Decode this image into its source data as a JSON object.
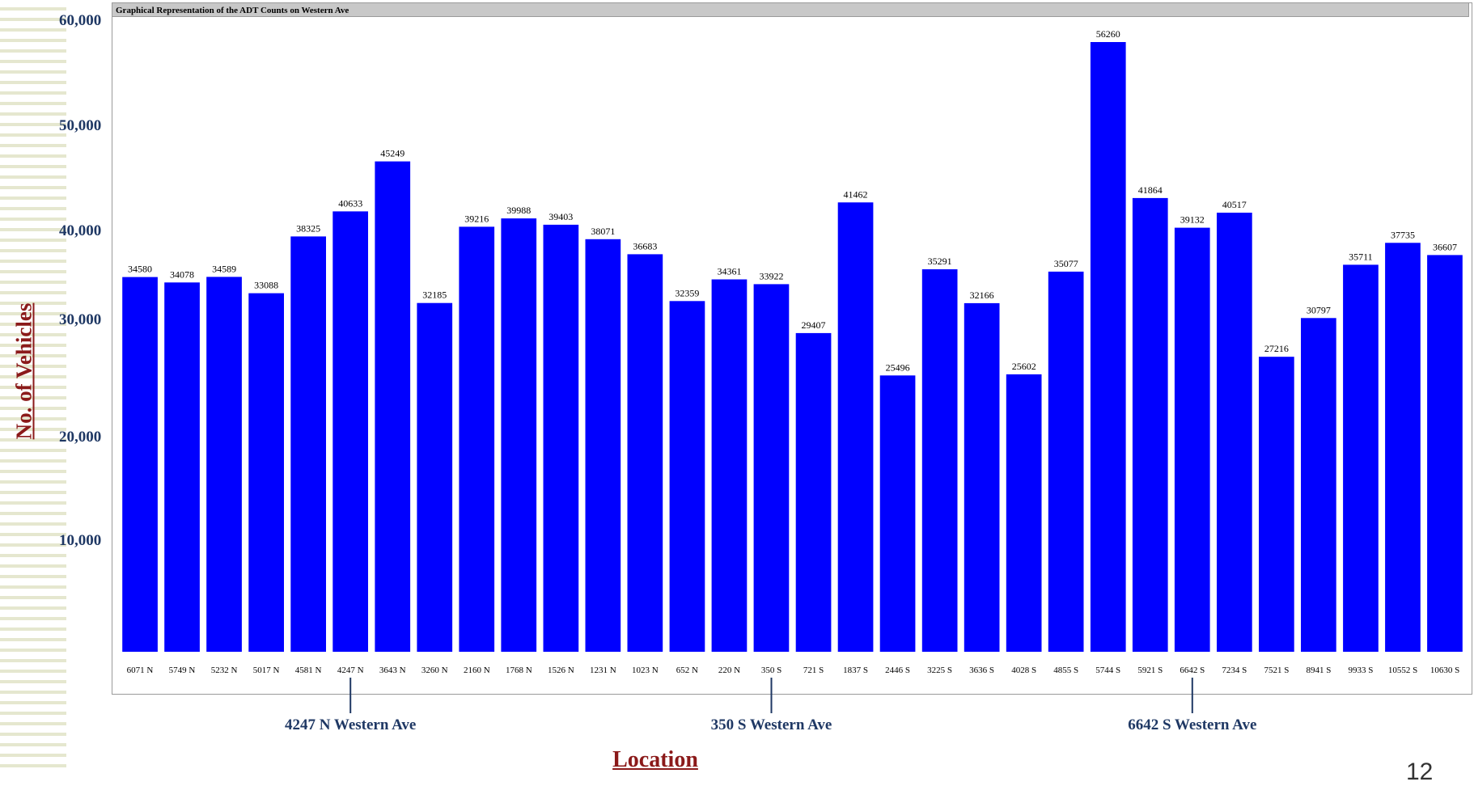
{
  "chart_data": {
    "type": "bar",
    "title": "Graphical Representation of the ADT Counts on Western Ave",
    "ylabel": "No. of  Vehicles",
    "xlabel": "Location",
    "yticks": [
      "60,000",
      "50,000",
      "40,000",
      "30,000",
      "20,000",
      "10,000"
    ],
    "categories": [
      "6071 N",
      "5749 N",
      "5232 N",
      "5017 N",
      "4581 N",
      "4247 N",
      "3643 N",
      "3260 N",
      "2160 N",
      "1768 N",
      "1526 N",
      "1231 N",
      "1023 N",
      "652 N",
      "220 N",
      "350 S",
      "721 S",
      "1837 S",
      "2446 S",
      "3225 S",
      "3636 S",
      "4028 S",
      "4855 S",
      "5744 S",
      "5921 S",
      "6642 S",
      "7234 S",
      "7521 S",
      "8941 S",
      "9933 S",
      "10552 S",
      "10630 S"
    ],
    "values": [
      34580,
      34078,
      34589,
      33088,
      38325,
      40633,
      45249,
      32185,
      39216,
      39988,
      39403,
      38071,
      36683,
      32359,
      34361,
      33922,
      29407,
      41462,
      25496,
      35291,
      32166,
      25602,
      35077,
      56260,
      41864,
      39132,
      40517,
      27216,
      30797,
      35711,
      37735,
      36607
    ],
    "bar_color": "#0000ff",
    "grid": false
  },
  "annotations": [
    {
      "label": "4247 N Western Ave",
      "category": "4247 N"
    },
    {
      "label": "350 S Western Ave",
      "category": "350 S"
    },
    {
      "label": "6642 S Western Ave",
      "category": "6642 S"
    }
  ],
  "page_number": "12"
}
